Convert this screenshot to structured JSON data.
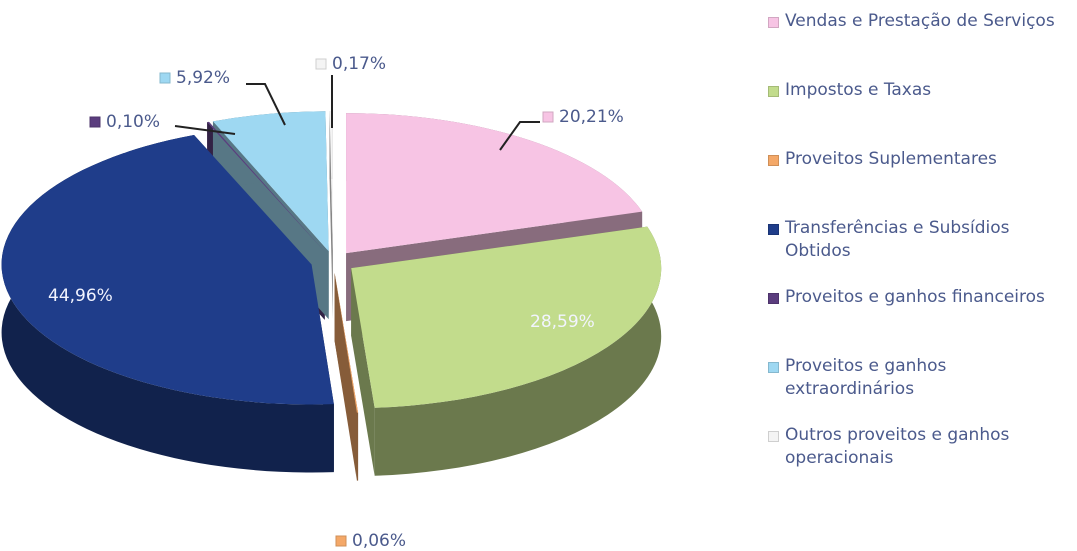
{
  "chart_data": {
    "type": "pie",
    "categories": [
      "Vendas e Prestação de Serviços",
      "Impostos e Taxas",
      "Proveitos Suplementares",
      "Transferências e Subsídios Obtidos",
      "Proveitos e ganhos financeiros",
      "Proveitos e ganhos extraordinários",
      "Outros proveitos e ganhos operacionais"
    ],
    "values": [
      20.21,
      28.59,
      0.06,
      44.96,
      0.1,
      5.92,
      0.17
    ],
    "value_labels": [
      "20,21%",
      "28,59%",
      "0,06%",
      "44,96%",
      "0,10%",
      "5,92%",
      "0,17%"
    ],
    "colors": [
      "#f7c4e4",
      "#c2dc8c",
      "#f4a868",
      "#1f3d8a",
      "#5b3d7e",
      "#9ed8f2",
      "#f4f4f4"
    ],
    "legend": "right"
  }
}
